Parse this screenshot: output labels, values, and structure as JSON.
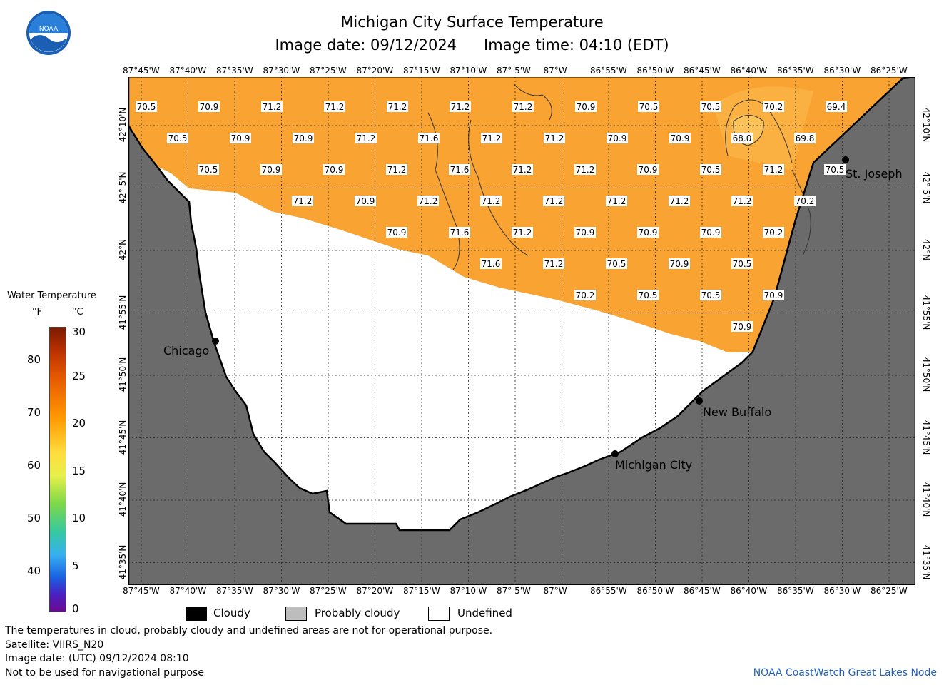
{
  "title": "Michigan City Surface Temperature",
  "image_date": "Image date: 09/12/2024",
  "image_time": "Image time: 04:10 (EDT)",
  "lon_ticks": [
    "87°45'W",
    "87°40'W",
    "87°35'W",
    "87°30'W",
    "87°25'W",
    "87°20'W",
    "87°15'W",
    "87°10'W",
    "87° 5'W",
    "87°W",
    "86°55'W",
    "86°50'W",
    "86°45'W",
    "86°40'W",
    "86°35'W",
    "86°30'W",
    "86°25'W"
  ],
  "lat_ticks": [
    "42°10'N",
    "42° 5'N",
    "42°N",
    "41°55'N",
    "41°50'N",
    "41°45'N",
    "41°40'N",
    "41°35'N"
  ],
  "colorbar": {
    "title": "Water Temperature",
    "unit_f": "°F",
    "unit_c": "°C",
    "f_labels": [
      "80",
      "70",
      "60",
      "50",
      "40"
    ],
    "c_labels": [
      "30",
      "25",
      "20",
      "15",
      "10",
      "5",
      "0"
    ]
  },
  "cities": [
    {
      "name": "Chicago"
    },
    {
      "name": "St. Joseph"
    },
    {
      "name": "New Buffalo"
    },
    {
      "name": "Michigan City"
    }
  ],
  "temps": [
    [
      "70.5",
      "70.9",
      "71.2",
      "71.2",
      "71.2",
      "71.2",
      "71.2",
      "70.9",
      "70.5",
      "70.5",
      "70.2",
      "69.4"
    ],
    [
      "70.5",
      "70.9",
      "70.9",
      "71.2",
      "71.6",
      "71.2",
      "71.2",
      "70.9",
      "70.9",
      "68.0",
      "69.8"
    ],
    [
      "70.5",
      "70.9",
      "70.9",
      "71.2",
      "71.6",
      "71.2",
      "71.2",
      "70.9",
      "70.5",
      "71.2",
      "70.5"
    ],
    [
      "71.2",
      "70.9",
      "71.2",
      "71.2",
      "71.2",
      "71.2",
      "71.2",
      "71.2",
      "70.2"
    ],
    [
      "70.9",
      "71.6",
      "71.2",
      "70.9",
      "70.9",
      "70.9",
      "70.2"
    ],
    [
      "71.6",
      "71.2",
      "70.5",
      "70.9",
      "70.5"
    ],
    [
      "70.2",
      "70.5",
      "70.5",
      "70.9"
    ],
    [
      "70.9"
    ]
  ],
  "legend": {
    "cloudy": "Cloudy",
    "probably_cloudy": "Probably cloudy",
    "undefined": "Undefined"
  },
  "footer": {
    "note": "The temperatures in cloud, probably cloudy and undefined areas are not for operational purpose.",
    "satellite": "Satellite: VIIRS_N20",
    "utc": "Image date: (UTC) 09/12/2024  08:10",
    "nav": "Not to be used for navigational purpose",
    "credit": "NOAA CoastWatch Great Lakes Node"
  },
  "colors": {
    "land": "#6b6b6b",
    "water": "#f8a832",
    "undefined": "#ffffff",
    "cloudy": "#000000",
    "probably_cloudy": "#bdbdbd",
    "city_dot": "#000000",
    "credit": "#2060c0"
  }
}
